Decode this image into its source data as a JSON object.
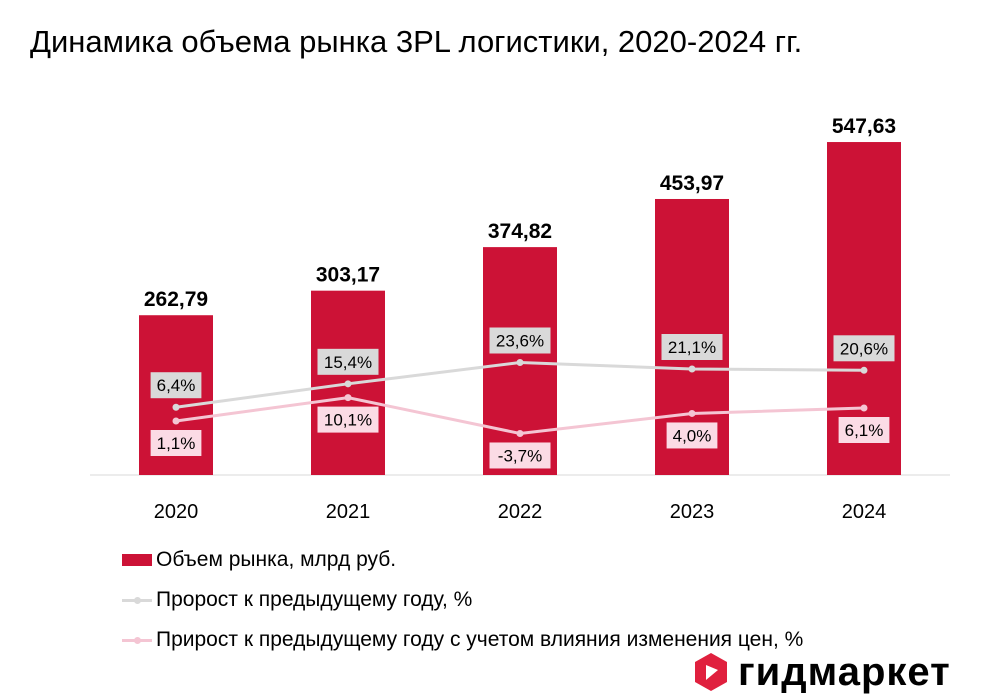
{
  "title": "Динамика объема рынка 3PL логистики, 2020-2024 гг.",
  "colors": {
    "bar": "#cc1236",
    "growth_line": "#d9d9d9",
    "real_growth_line": "#f4c5d3",
    "growth_label_bg": "#d9d9d9",
    "real_growth_label_bg": "#fbdbe5",
    "brand_red": "#e0203e"
  },
  "chart_data": {
    "type": "bar",
    "categories": [
      "2020",
      "2021",
      "2022",
      "2023",
      "2024"
    ],
    "series": [
      {
        "name": "Объем рынка, млрд руб.",
        "type": "bar",
        "values": [
          262.79,
          303.17,
          374.82,
          453.97,
          547.63
        ],
        "labels": [
          "262,79",
          "303,17",
          "374,82",
          "453,97",
          "547,63"
        ]
      },
      {
        "name": "Пророст к предыдущему году, %",
        "type": "line",
        "values": [
          6.4,
          15.4,
          23.6,
          21.1,
          20.6
        ],
        "labels": [
          "6,4%",
          "15,4%",
          "23,6%",
          "21,1%",
          "20,6%"
        ]
      },
      {
        "name": "Прирост к предыдущему году с учетом влияния изменения цен, %",
        "type": "line",
        "values": [
          1.1,
          10.1,
          -3.7,
          4.0,
          6.1
        ],
        "labels": [
          "1,1%",
          "10,1%",
          "-3,7%",
          "4,0%",
          "6,1%"
        ]
      }
    ],
    "legend_position": "bottom-left",
    "grid": false
  },
  "logo": {
    "text": "гидмаркет",
    "icon": "hexagon-logo-icon"
  }
}
